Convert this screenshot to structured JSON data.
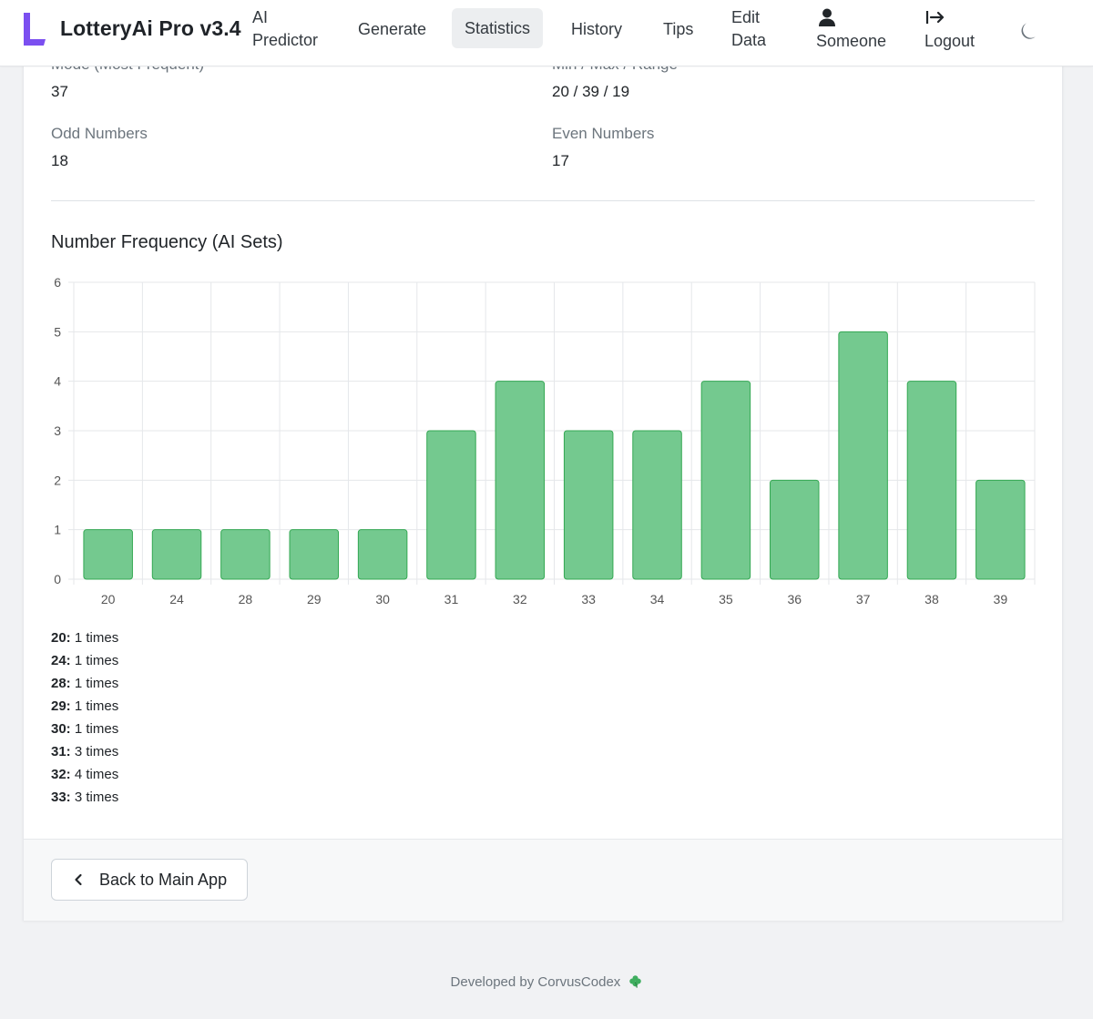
{
  "navbar": {
    "brand": "LotteryAi Pro v3.4",
    "items": [
      {
        "line1": "AI",
        "line2": "Predictor"
      },
      {
        "label": "Generate"
      },
      {
        "label": "Statistics"
      },
      {
        "label": "History"
      },
      {
        "label": "Tips"
      },
      {
        "line1": "Edit",
        "line2": "Data"
      }
    ],
    "user": "Someone",
    "logout": "Logout",
    "icons": {
      "brand": "logo-icon",
      "user": "user-icon",
      "logout": "logout-icon",
      "theme": "moon-icon"
    },
    "brand_color": "#7b4ff0"
  },
  "stats": {
    "mode_label": "Mode (Most Frequent)",
    "mode_value": "37",
    "minmax_label": "Min / Max / Range",
    "minmax_value": "20 / 39 / 19",
    "odd_label": "Odd Numbers",
    "odd_value": "18",
    "even_label": "Even Numbers",
    "even_value": "17"
  },
  "chart_title": "Number Frequency (AI Sets)",
  "chart_data": {
    "type": "bar",
    "title": "Number Frequency (AI Sets)",
    "categories": [
      "20",
      "24",
      "28",
      "29",
      "30",
      "31",
      "32",
      "33",
      "34",
      "35",
      "36",
      "37",
      "38",
      "39"
    ],
    "values": [
      1,
      1,
      1,
      1,
      1,
      3,
      4,
      3,
      3,
      4,
      2,
      5,
      4,
      2
    ],
    "ylim": [
      0,
      6
    ],
    "yticks": [
      "0",
      "1",
      "2",
      "3",
      "4",
      "5",
      "6"
    ],
    "xlabel": "",
    "ylabel": "",
    "grid": true,
    "bar_color": "#74c98f",
    "bar_border": "#34a853"
  },
  "frequency_list": [
    {
      "number": "20:",
      "text": "1 times"
    },
    {
      "number": "24:",
      "text": "1 times"
    },
    {
      "number": "28:",
      "text": "1 times"
    },
    {
      "number": "29:",
      "text": "1 times"
    },
    {
      "number": "30:",
      "text": "1 times"
    },
    {
      "number": "31:",
      "text": "3 times"
    },
    {
      "number": "32:",
      "text": "4 times"
    },
    {
      "number": "33:",
      "text": "3 times"
    }
  ],
  "back_button": {
    "label": "Back to Main App",
    "icon": "chevron-left-icon"
  },
  "footer": {
    "credit": "Developed by CorvusCodex",
    "icon": "clover-icon"
  }
}
